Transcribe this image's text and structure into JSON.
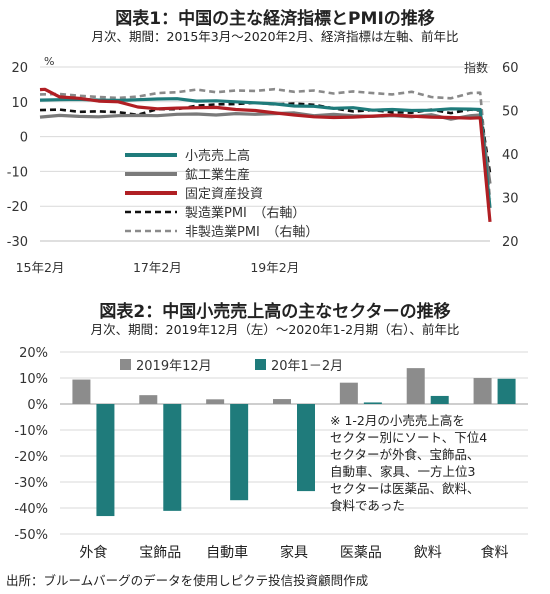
{
  "chart_data": [
    {
      "type": "line",
      "title": "図表1：中国の主な経済指標とPMIの推移",
      "subtitle": "月次、期間：2015年3月～2020年2月、経済指標は左軸、前年比",
      "left_axis_unit": "%",
      "right_axis_unit": "指数",
      "ylim": [
        -30,
        20
      ],
      "y2lim": [
        20,
        60
      ],
      "yticks": [
        "20",
        "10",
        "0",
        "-10",
        "-20",
        "-30"
      ],
      "y2ticks": [
        "60",
        "50",
        "40",
        "30",
        "20"
      ],
      "xticks": [
        "15年2月",
        "17年2月",
        "19年2月"
      ],
      "grid": true,
      "legend": "center-left",
      "series": [
        {
          "name": "小売売上高",
          "color": "#1f7b7b",
          "axis": "left",
          "style": "solid",
          "points": [
            [
              0,
              10.5
            ],
            [
              4,
              10.6
            ],
            [
              8,
              10.7
            ],
            [
              12,
              10.5
            ],
            [
              16,
              10.4
            ],
            [
              20,
              10.6
            ],
            [
              24,
              10.8
            ],
            [
              28,
              10.9
            ],
            [
              32,
              10.2
            ],
            [
              36,
              10.3
            ],
            [
              40,
              10.0
            ],
            [
              44,
              9.7
            ],
            [
              48,
              9.4
            ],
            [
              52,
              8.8
            ],
            [
              56,
              8.7
            ],
            [
              60,
              8.1
            ],
            [
              64,
              8.3
            ],
            [
              68,
              7.6
            ],
            [
              72,
              7.8
            ],
            [
              76,
              7.5
            ],
            [
              80,
              7.6
            ],
            [
              84,
              8.0
            ],
            [
              88,
              7.9
            ],
            [
              90,
              7.8
            ],
            [
              92,
              -20.5
            ]
          ]
        },
        {
          "name": "鉱工業生産",
          "color": "#7a7a7a",
          "axis": "left",
          "style": "solid",
          "points": [
            [
              0,
              5.6
            ],
            [
              4,
              6.1
            ],
            [
              8,
              5.8
            ],
            [
              12,
              5.7
            ],
            [
              16,
              6.0
            ],
            [
              20,
              6.1
            ],
            [
              24,
              6.0
            ],
            [
              28,
              6.4
            ],
            [
              32,
              6.5
            ],
            [
              36,
              6.2
            ],
            [
              40,
              6.6
            ],
            [
              44,
              6.4
            ],
            [
              48,
              6.6
            ],
            [
              52,
              6.8
            ],
            [
              56,
              6.0
            ],
            [
              60,
              6.4
            ],
            [
              64,
              6.0
            ],
            [
              68,
              5.8
            ],
            [
              72,
              6.0
            ],
            [
              76,
              5.7
            ],
            [
              80,
              6.3
            ],
            [
              84,
              5.0
            ],
            [
              88,
              6.0
            ],
            [
              90,
              6.2
            ],
            [
              92,
              -13.5
            ]
          ]
        },
        {
          "name": "固定資産投資",
          "color": "#b01f24",
          "axis": "left",
          "style": "solid",
          "points": [
            [
              0,
              13.5
            ],
            [
              1,
              13.6
            ],
            [
              4,
              11.4
            ],
            [
              8,
              11.0
            ],
            [
              12,
              10.2
            ],
            [
              16,
              10.0
            ],
            [
              20,
              8.5
            ],
            [
              24,
              8.0
            ],
            [
              28,
              8.2
            ],
            [
              32,
              8.3
            ],
            [
              36,
              8.4
            ],
            [
              40,
              7.8
            ],
            [
              44,
              7.5
            ],
            [
              48,
              6.8
            ],
            [
              52,
              6.2
            ],
            [
              56,
              5.7
            ],
            [
              60,
              5.5
            ],
            [
              64,
              5.6
            ],
            [
              68,
              5.9
            ],
            [
              72,
              6.2
            ],
            [
              76,
              5.9
            ],
            [
              80,
              5.6
            ],
            [
              84,
              5.5
            ],
            [
              88,
              5.3
            ],
            [
              90,
              5.4
            ],
            [
              92,
              -24.5
            ]
          ]
        },
        {
          "name": "製造業PMI　（右軸）",
          "color": "#111111",
          "axis": "right",
          "style": "dashed",
          "points": [
            [
              0,
              50.1
            ],
            [
              4,
              50.2
            ],
            [
              8,
              49.7
            ],
            [
              12,
              49.8
            ],
            [
              16,
              49.6
            ],
            [
              20,
              49.0
            ],
            [
              24,
              50.3
            ],
            [
              28,
              50.3
            ],
            [
              32,
              51.1
            ],
            [
              36,
              51.4
            ],
            [
              40,
              51.5
            ],
            [
              44,
              51.8
            ],
            [
              48,
              51.4
            ],
            [
              52,
              51.6
            ],
            [
              56,
              51.3
            ],
            [
              60,
              50.5
            ],
            [
              64,
              49.8
            ],
            [
              68,
              50.1
            ],
            [
              72,
              49.6
            ],
            [
              76,
              49.5
            ],
            [
              80,
              50.2
            ],
            [
              84,
              49.4
            ],
            [
              88,
              50.2
            ],
            [
              90,
              50.0
            ],
            [
              92,
              35.7
            ]
          ]
        },
        {
          "name": "非製造業PMI　（右軸）",
          "color": "#8a8a8a",
          "axis": "right",
          "style": "dashed",
          "points": [
            [
              0,
              53.7
            ],
            [
              4,
              53.8
            ],
            [
              8,
              53.4
            ],
            [
              12,
              53.1
            ],
            [
              16,
              52.9
            ],
            [
              20,
              53.2
            ],
            [
              24,
              54.0
            ],
            [
              28,
              54.2
            ],
            [
              32,
              54.8
            ],
            [
              36,
              54.2
            ],
            [
              40,
              54.6
            ],
            [
              44,
              54.5
            ],
            [
              48,
              54.9
            ],
            [
              52,
              54.3
            ],
            [
              56,
              54.6
            ],
            [
              60,
              53.9
            ],
            [
              64,
              54.4
            ],
            [
              68,
              54.0
            ],
            [
              72,
              53.7
            ],
            [
              76,
              54.3
            ],
            [
              80,
              53.1
            ],
            [
              84,
              52.8
            ],
            [
              88,
              54.0
            ],
            [
              90,
              54.1
            ],
            [
              92,
              29.6
            ]
          ]
        }
      ]
    },
    {
      "type": "bar",
      "title": "図表2：中国小売売上高の主なセクターの推移",
      "subtitle": "月次、期間：2019年12月（左）～2020年1-2月期（右）、前年比",
      "categories": [
        "外食",
        "宝飾品",
        "自動車",
        "家具",
        "医薬品",
        "飲料",
        "食料"
      ],
      "ylim": [
        -50,
        20
      ],
      "yticks": [
        "20%",
        "10%",
        "0%",
        "-10%",
        "-20%",
        "-30%",
        "-40%",
        "-50%"
      ],
      "legend": "top",
      "series": [
        {
          "name": "2019年12月",
          "color": "#8c8c8c",
          "values": [
            9.4,
            3.4,
            1.8,
            1.9,
            8.2,
            13.8,
            10.0
          ]
        },
        {
          "name": "20年1－2月",
          "color": "#1f7b7b",
          "values": [
            -43.1,
            -41.1,
            -37.0,
            -33.5,
            0.6,
            3.1,
            9.7
          ]
        }
      ],
      "annotation_lines": [
        "※ 1-2月の小売売上高を",
        "セクター別にソート、下位4",
        "セクターが外食、宝飾品、",
        "自動車、家具、一方上位3",
        "セクターは医薬品、飲料、",
        "食料であった"
      ]
    }
  ],
  "source": "出所：ブルームバーグのデータを使用しピクテ投信投資顧問作成"
}
